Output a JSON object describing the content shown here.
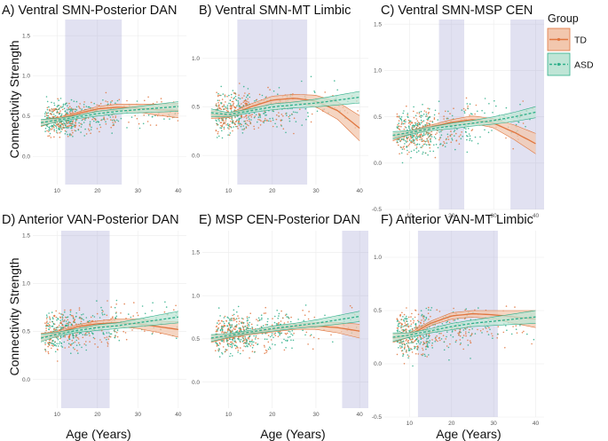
{
  "colors": {
    "td": "#E0763F",
    "asd": "#2FAF8A",
    "td_band": "#F2C7AE",
    "asd_band": "#BFE5D6",
    "highlight": "#9C9CCF",
    "grid": "#ECECEC"
  },
  "axis_labels": {
    "x": "Age (Years)",
    "y": "Connectivity Strength"
  },
  "legend": {
    "title": "Group",
    "entries": [
      {
        "name": "TD",
        "color": "#E0763F",
        "style": "solid"
      },
      {
        "name": "ASD",
        "color": "#2FAF8A",
        "style": "dashed"
      }
    ]
  },
  "chart_data": [
    {
      "type": "scatter",
      "title": "A) Ventral SMN-Posterior DAN",
      "xlim": [
        4,
        42
      ],
      "ylim": [
        -0.35,
        1.7
      ],
      "xticks": [
        10,
        20,
        30,
        40
      ],
      "yticks": [
        0.0,
        0.5,
        1.0,
        1.5
      ],
      "highlight": [
        [
          12,
          26
        ]
      ],
      "series": [
        {
          "name": "TD",
          "x": [
            6,
            10,
            15,
            20,
            25,
            30,
            35,
            40
          ],
          "y": [
            0.41,
            0.46,
            0.53,
            0.59,
            0.61,
            0.6,
            0.58,
            0.57
          ],
          "band": [
            0.04,
            0.02,
            0.02,
            0.03,
            0.04,
            0.05,
            0.07,
            0.09
          ]
        },
        {
          "name": "ASD",
          "x": [
            6,
            10,
            15,
            20,
            25,
            30,
            35,
            40
          ],
          "y": [
            0.42,
            0.45,
            0.49,
            0.53,
            0.56,
            0.58,
            0.6,
            0.62
          ],
          "band": [
            0.04,
            0.02,
            0.02,
            0.03,
            0.03,
            0.04,
            0.05,
            0.06
          ]
        }
      ],
      "scatter": {
        "center": 0.48,
        "spread": 0.26
      }
    },
    {
      "type": "scatter",
      "title": "B) Ventral SMN-MT Limbic",
      "xlim": [
        4,
        42
      ],
      "ylim": [
        -0.3,
        1.4
      ],
      "xticks": [
        10,
        20,
        30,
        40
      ],
      "yticks": [
        0.0,
        0.5,
        1.0
      ],
      "highlight": [
        [
          12,
          28
        ]
      ],
      "series": [
        {
          "name": "TD",
          "x": [
            6,
            10,
            15,
            20,
            25,
            30,
            35,
            40
          ],
          "y": [
            0.42,
            0.41,
            0.5,
            0.57,
            0.59,
            0.56,
            0.46,
            0.28
          ],
          "band": [
            0.04,
            0.02,
            0.03,
            0.04,
            0.04,
            0.06,
            0.09,
            0.13
          ]
        },
        {
          "name": "ASD",
          "x": [
            6,
            10,
            15,
            20,
            25,
            30,
            35,
            40
          ],
          "y": [
            0.44,
            0.42,
            0.46,
            0.5,
            0.52,
            0.54,
            0.57,
            0.6
          ],
          "band": [
            0.04,
            0.02,
            0.02,
            0.03,
            0.03,
            0.04,
            0.05,
            0.06
          ]
        }
      ],
      "scatter": {
        "center": 0.46,
        "spread": 0.26
      }
    },
    {
      "type": "scatter",
      "title": "C) Ventral SMN-MSP CEN",
      "xlim": [
        4,
        42
      ],
      "ylim": [
        -0.5,
        1.55
      ],
      "xticks": [
        10,
        20,
        30,
        40
      ],
      "yticks": [
        -0.5,
        0.0,
        0.5,
        1.0,
        1.5
      ],
      "highlight": [
        [
          17,
          23
        ],
        [
          34,
          42
        ]
      ],
      "series": [
        {
          "name": "TD",
          "x": [
            6,
            10,
            15,
            20,
            25,
            30,
            35,
            40
          ],
          "y": [
            0.28,
            0.33,
            0.39,
            0.44,
            0.47,
            0.43,
            0.33,
            0.21
          ],
          "band": [
            0.04,
            0.02,
            0.02,
            0.03,
            0.04,
            0.05,
            0.08,
            0.11
          ]
        },
        {
          "name": "ASD",
          "x": [
            6,
            10,
            15,
            20,
            25,
            30,
            35,
            40
          ],
          "y": [
            0.3,
            0.33,
            0.37,
            0.4,
            0.43,
            0.46,
            0.5,
            0.55
          ],
          "band": [
            0.04,
            0.02,
            0.02,
            0.03,
            0.03,
            0.04,
            0.05,
            0.06
          ]
        }
      ],
      "scatter": {
        "center": 0.36,
        "spread": 0.3
      }
    },
    {
      "type": "scatter",
      "title": "D) Anterior VAN-Posterior DAN",
      "xlim": [
        4,
        42
      ],
      "ylim": [
        -0.3,
        1.55
      ],
      "xticks": [
        10,
        20,
        30,
        40
      ],
      "yticks": [
        0.0,
        0.5,
        1.0,
        1.5
      ],
      "highlight": [
        [
          11,
          23
        ]
      ],
      "series": [
        {
          "name": "TD",
          "x": [
            6,
            10,
            15,
            20,
            25,
            30,
            35,
            40
          ],
          "y": [
            0.44,
            0.48,
            0.55,
            0.58,
            0.59,
            0.58,
            0.55,
            0.52
          ],
          "band": [
            0.04,
            0.02,
            0.02,
            0.03,
            0.04,
            0.05,
            0.06,
            0.08
          ]
        },
        {
          "name": "ASD",
          "x": [
            6,
            10,
            15,
            20,
            25,
            30,
            35,
            40
          ],
          "y": [
            0.43,
            0.47,
            0.51,
            0.54,
            0.56,
            0.59,
            0.62,
            0.65
          ],
          "band": [
            0.04,
            0.02,
            0.02,
            0.03,
            0.03,
            0.04,
            0.05,
            0.06
          ]
        }
      ],
      "scatter": {
        "center": 0.52,
        "spread": 0.26
      }
    },
    {
      "type": "scatter",
      "title": "E) MSP CEN-Posterior DAN",
      "xlim": [
        4,
        42
      ],
      "ylim": [
        -0.3,
        1.75
      ],
      "xticks": [
        10,
        20,
        30,
        40
      ],
      "yticks": [
        0.0,
        0.5,
        1.0,
        1.5
      ],
      "highlight": [
        [
          36,
          42
        ]
      ],
      "series": [
        {
          "name": "TD",
          "x": [
            6,
            10,
            15,
            20,
            25,
            30,
            35,
            40
          ],
          "y": [
            0.5,
            0.53,
            0.57,
            0.61,
            0.64,
            0.65,
            0.63,
            0.59
          ],
          "band": [
            0.04,
            0.02,
            0.02,
            0.03,
            0.03,
            0.04,
            0.06,
            0.08
          ]
        },
        {
          "name": "ASD",
          "x": [
            6,
            10,
            15,
            20,
            25,
            30,
            35,
            40
          ],
          "y": [
            0.51,
            0.54,
            0.58,
            0.62,
            0.65,
            0.68,
            0.72,
            0.76
          ],
          "band": [
            0.04,
            0.02,
            0.02,
            0.03,
            0.03,
            0.04,
            0.05,
            0.06
          ]
        }
      ],
      "scatter": {
        "center": 0.58,
        "spread": 0.28
      }
    },
    {
      "type": "scatter",
      "title": "F) Anterior VAN-MT Limbic",
      "xlim": [
        4,
        42
      ],
      "ylim": [
        -0.5,
        1.25
      ],
      "xticks": [
        10,
        20,
        30,
        40
      ],
      "yticks": [
        -0.5,
        0.0,
        0.5,
        1.0
      ],
      "highlight": [
        [
          12,
          31
        ]
      ],
      "series": [
        {
          "name": "TD",
          "x": [
            6,
            10,
            15,
            20,
            25,
            30,
            35,
            40
          ],
          "y": [
            0.24,
            0.27,
            0.38,
            0.45,
            0.47,
            0.46,
            0.44,
            0.42
          ],
          "band": [
            0.04,
            0.02,
            0.02,
            0.03,
            0.03,
            0.04,
            0.06,
            0.08
          ]
        },
        {
          "name": "ASD",
          "x": [
            6,
            10,
            15,
            20,
            25,
            30,
            35,
            40
          ],
          "y": [
            0.25,
            0.27,
            0.31,
            0.35,
            0.38,
            0.4,
            0.42,
            0.44
          ],
          "band": [
            0.04,
            0.02,
            0.02,
            0.03,
            0.03,
            0.04,
            0.05,
            0.06
          ]
        }
      ],
      "scatter": {
        "center": 0.3,
        "spread": 0.26
      }
    }
  ]
}
